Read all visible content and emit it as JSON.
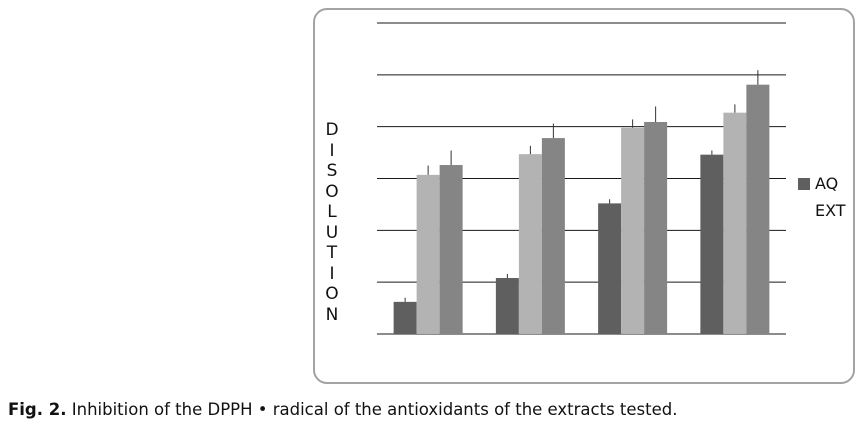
{
  "chart_data": {
    "type": "bar",
    "ylabel": "DISOLUTION",
    "ylim": [
      0,
      6
    ],
    "gridlines": [
      1,
      2,
      3,
      4,
      5,
      6
    ],
    "categories": [
      "",
      "",
      "",
      ""
    ],
    "series": [
      {
        "name": "AQ",
        "color": "#5f5f5f",
        "values": [
          0.62,
          1.08,
          2.52,
          3.46
        ],
        "errors": [
          0.08,
          0.08,
          0.08,
          0.08
        ]
      },
      {
        "name": "",
        "color": "#b3b3b3",
        "values": [
          3.07,
          3.47,
          3.98,
          4.27
        ],
        "errors": [
          0.18,
          0.16,
          0.16,
          0.16
        ]
      },
      {
        "name": "EXT",
        "color": "#858585",
        "values": [
          3.26,
          3.78,
          4.09,
          4.81
        ],
        "errors": [
          0.28,
          0.28,
          0.3,
          0.28
        ]
      }
    ],
    "legend": [
      {
        "label": "AQ",
        "color": "#5f5f5f",
        "swatch": true
      },
      {
        "label": "EXT",
        "color": "#858585",
        "swatch": false
      }
    ],
    "legend_position": "right"
  },
  "caption": {
    "label": "Fig. 2.",
    "text": " Inhibition of the DPPH • radical of the antioxidants of the extracts tested."
  }
}
